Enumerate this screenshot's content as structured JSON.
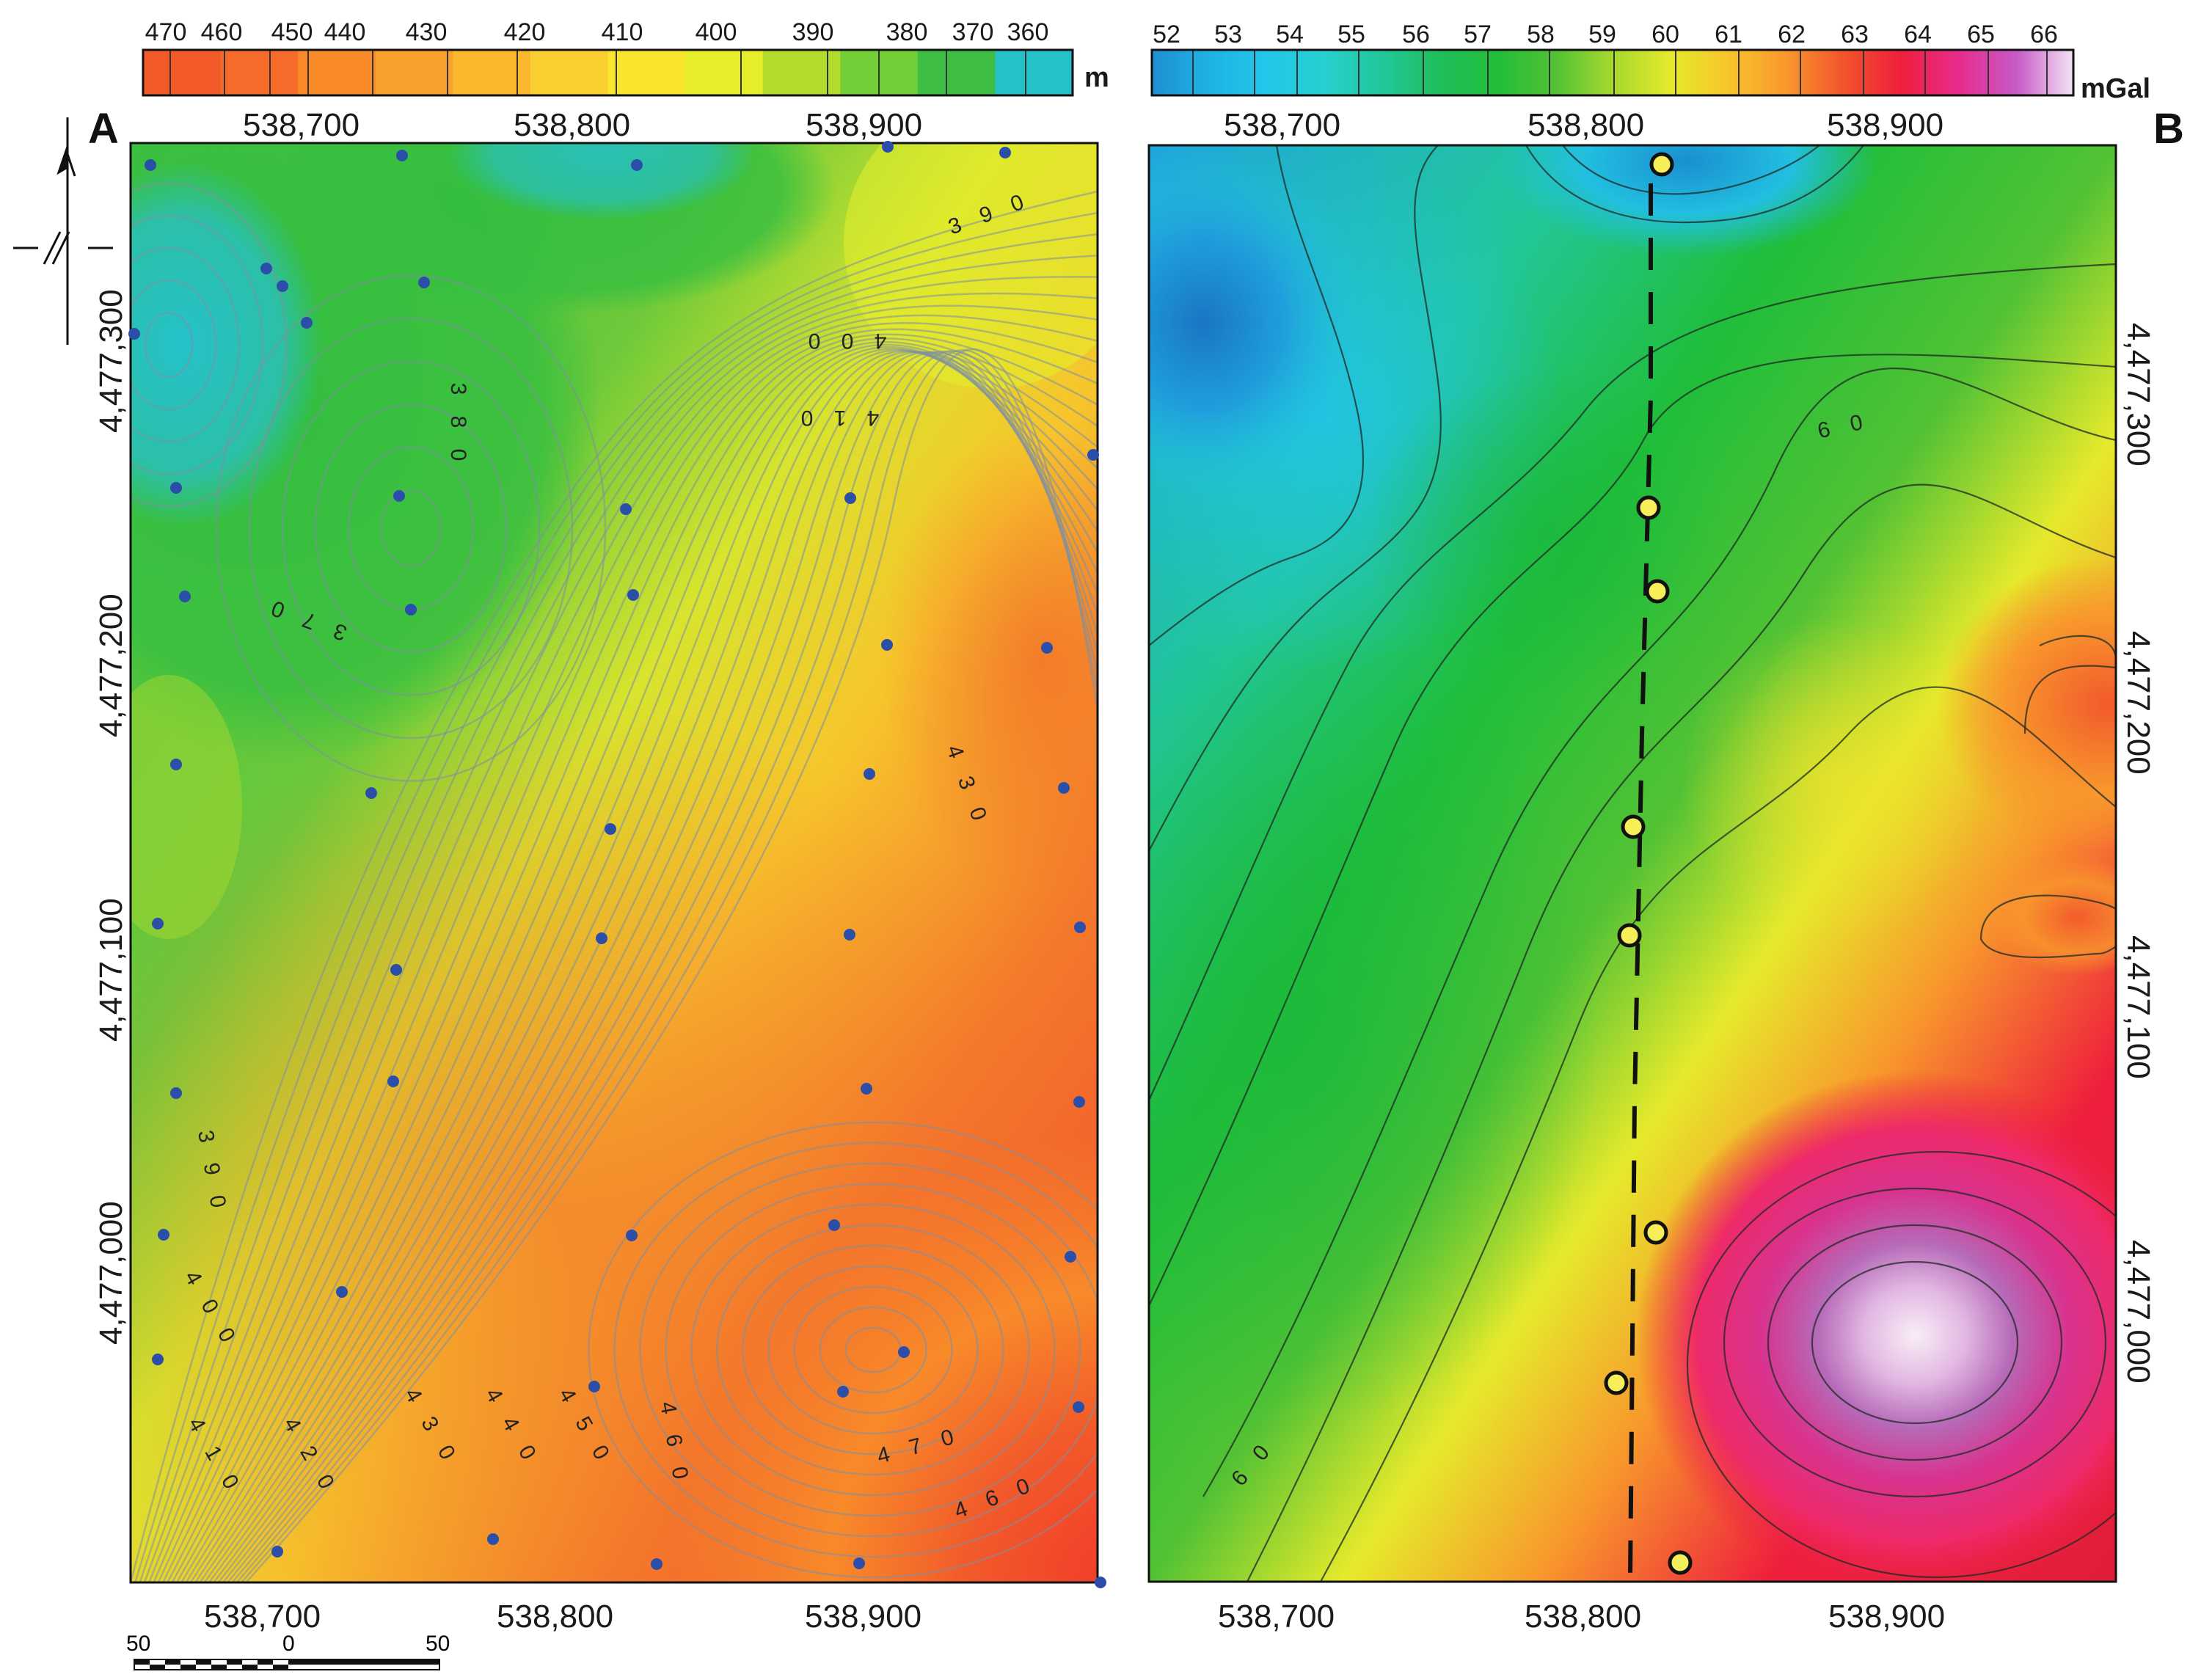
{
  "panel_a": {
    "letter": "A",
    "colorbar": {
      "unit": "m",
      "labels": [
        "470",
        "460",
        "450",
        "440",
        "430",
        "420",
        "410",
        "400",
        "390",
        "380",
        "370",
        "360"
      ],
      "colors": [
        "#f25a2a",
        "#f76b2a",
        "#f88a2a",
        "#f9a12c",
        "#fbb72e",
        "#fbcf2f",
        "#f9e52e",
        "#e6ee2c",
        "#b2dc2d",
        "#72cd36",
        "#3dbe42",
        "#25c1c9"
      ]
    },
    "x_labels_top": [
      "538,700",
      "538,800",
      "538,900"
    ],
    "x_labels_bottom": [
      "538,700",
      "538,800",
      "538,900"
    ],
    "y_labels": [
      "4,477,300",
      "4,477,200",
      "4,477,100",
      "4,477,000"
    ],
    "contour_labels": [
      "3 9 0",
      "4 0 0",
      "4 1 0",
      "3 8 0",
      "3 7 0",
      "4 3 0",
      "3 9 0",
      "4 0 0",
      "4 1 0",
      "4 2 0",
      "4 3 0",
      "4 4 0",
      "4 5 0",
      "4 6 0",
      "4 7 0",
      "4 6 0"
    ],
    "point_color": "#2b4fa8"
  },
  "panel_b": {
    "letter": "B",
    "colorbar": {
      "unit": "mGal",
      "labels": [
        "52",
        "53",
        "54",
        "55",
        "56",
        "57",
        "58",
        "59",
        "60",
        "61",
        "62",
        "63",
        "64",
        "65",
        "66"
      ],
      "colors": [
        "#1f8fd2",
        "#1fb2e3",
        "#22c7ea",
        "#27d0cf",
        "#22c79a",
        "#1fbe5a",
        "#22be3a",
        "#52c234",
        "#a6d82f",
        "#e6ea2b",
        "#f7c52c",
        "#f8982c",
        "#f2542b",
        "#ee1f3c",
        "#e92b8c",
        "#c65ac6",
        "#f3e3f3"
      ]
    },
    "x_labels_top": [
      "538,700",
      "538,800",
      "538,900"
    ],
    "x_labels_bottom": [
      "538,700",
      "538,800",
      "538,900"
    ],
    "y_labels": [
      "4,477,300",
      "4,477,200",
      "4,477,100",
      "4,477,000"
    ],
    "contour_labels": [
      "6 0",
      "6 0"
    ],
    "marker_color": "#f7ef5a"
  },
  "scale_bar": {
    "labels": [
      "50",
      "0",
      "50"
    ]
  },
  "north_arrow_icon": "north-arrow-icon"
}
